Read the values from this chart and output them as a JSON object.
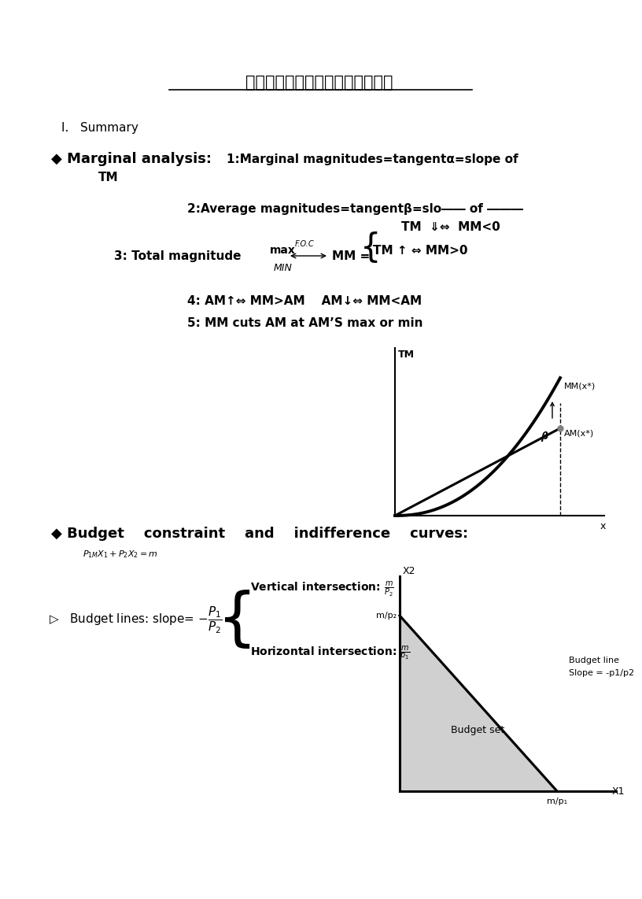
{
  "title": "范里安中级微观经济学知识点总结",
  "bg_color": "#ffffff",
  "text_color": "#000000",
  "section1_header": "I.   Summary",
  "bullet1_title": "◆ Marginal analysis:",
  "bullet1_sub": "1:Marginal magnitudes=tangentα=slope of",
  "bullet1_sub2": "TM",
  "point2": "2:Average magnitudes=tangentβ=slo―― of ―――",
  "point2_tm": "TM  ⇓⇔  MM<0",
  "point3_label": "3: Total magnitude",
  "point3_max": "max",
  "point3_min": "MIN",
  "point3_foc": "F.O.C",
  "point3_mm": "MM =",
  "point3_tm_up": "TM ↑ ⇔ MM>0",
  "point4": "4: AM↑⇔ MM>AM    AM↓⇔ MM<AM",
  "point5": "5: MM cuts AM at AM’S max or min",
  "bullet2_title": "◆ Budget    constraint    and    indifference    curves:",
  "budget_eq": "$P_{1M}X_1 + P_2X_2 = m$",
  "vert_int_text": "Vertical intersection: $\\frac{m}{P_2}$",
  "horiz_int_text": "Horizontal intersection: $\\frac{m}{p_1}$",
  "slope_label": "$\\triangleright$   Budget lines: slope= $-\\dfrac{P_1}{P_2}$",
  "graph1_tm_label": "TM",
  "graph1_x_label": "x",
  "graph1_mm_label": "MM(x*)",
  "graph1_am_label": "AM(x*)",
  "graph1_beta": "β",
  "graph2_x2_label": "X2",
  "graph2_mp2_label": "m/p₂",
  "graph2_mp1_label": "m/p₁",
  "graph2_x1_label": "X1",
  "budget_line_label": "Budget line\nSlope = -p1/p2",
  "budget_set_label": "Budget set"
}
